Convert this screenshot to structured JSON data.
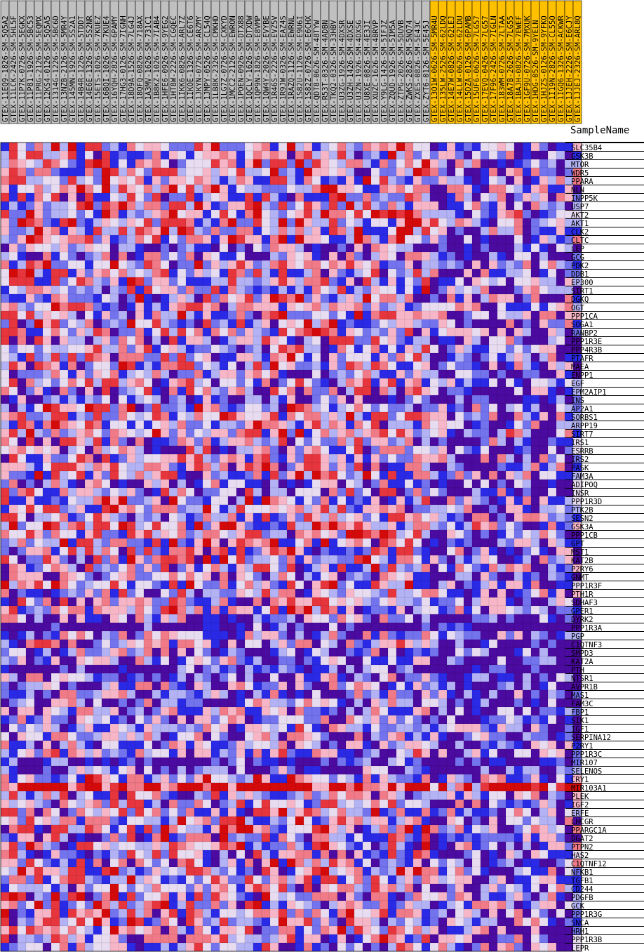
{
  "chart_data": {
    "type": "heatmap",
    "header_label": "SampleName",
    "colors": {
      "sample_header_group_a": "#c0c0c0",
      "sample_header_group_b": "#ffc000",
      "scale": [
        "#4b0aa0",
        "#2a2ae6",
        "#7373ee",
        "#b2b2f4",
        "#e8dcf0",
        "#f7b6c8",
        "#f07a88",
        "#e6353d",
        "#d40a0a"
      ],
      "grid": "#000000"
    },
    "value_range": [
      -1,
      1
    ],
    "columns": [
      {
        "name": "GTEX-11EQ9-1826-SM-5Q5A2",
        "group": "a"
      },
      {
        "name": "GTEX-11LCK-2426-SM-5HL5F",
        "group": "a"
      },
      {
        "name": "GTEX-11P7K-0726-SM-5EGKX",
        "group": "a"
      },
      {
        "name": "GTEX-11P81-1926-SM-5BC53",
        "group": "a"
      },
      {
        "name": "GTEX-11PRG-2126-SM-5EQMX",
        "group": "a"
      },
      {
        "name": "GTEX-12KS4-0126-SM-5Q5A5",
        "group": "a"
      },
      {
        "name": "GTEX-1314G-1226-SM-5BC6D",
        "group": "a"
      },
      {
        "name": "GTEX-13NZB-2126-SM-5MR4Y",
        "group": "a"
      },
      {
        "name": "GTEX-145MN-1926-SM-5S2A1",
        "group": "a"
      },
      {
        "name": "GTEX-14B4R-1226-SM-5TDDT",
        "group": "a"
      },
      {
        "name": "GTEX-14E6E-1326-SM-5S2NR",
        "group": "a"
      },
      {
        "name": "GTEX-15ETS-1026-SM-7KUEZ",
        "group": "a"
      },
      {
        "name": "GTEX-16BQI-1026-SM-7KUE4",
        "group": "a"
      },
      {
        "name": "GTEX-16YQH-2826-SM-6PAMY",
        "group": "a"
      },
      {
        "name": "GTEX-17HG3-0126-SM-7IGNH",
        "group": "a"
      },
      {
        "name": "GTEX-18D9A-1526-SM-7LG4J",
        "group": "a"
      },
      {
        "name": "GTEX-18QFQ-0826-SM-718AX",
        "group": "a"
      },
      {
        "name": "GTEX-1A3MV-1626-SM-731C1",
        "group": "a"
      },
      {
        "name": "GTEX-1B8KZ-1026-SM-7IAB4",
        "group": "a"
      },
      {
        "name": "GTEX-1HFE6-0926-SM-9YEG2",
        "group": "a"
      },
      {
        "name": "GTEX-1HT8W-2226-SM-CGQEC",
        "group": "a"
      },
      {
        "name": "GTEX-1IKK6-0826-SM-ARL7Z",
        "group": "a"
      },
      {
        "name": "GTEX-1IKOE-1326-SM-CE6T6",
        "group": "a"
      },
      {
        "name": "GTEX-1JKYN-0726-SM-ARZMY",
        "group": "a"
      },
      {
        "name": "GTEX-1JMPY-0526-SM-CL54Q",
        "group": "a"
      },
      {
        "name": "GTEX-1LB8K-2326-SM-CMKHD",
        "group": "a"
      },
      {
        "name": "GTEX-1LG7Z-0726-SM-CXKYD",
        "group": "a"
      },
      {
        "name": "GTEX-1MCC2-2126-SM-EWRON",
        "group": "a"
      },
      {
        "name": "GTEX-1POEN-0926-SM-DTX88",
        "group": "a"
      },
      {
        "name": "GTEX-1QCLY-1626-SM-DTXDW",
        "group": "a"
      },
      {
        "name": "GTEX-1QP9N-1826-SM-E8VMP",
        "group": "a"
      },
      {
        "name": "GTEX-1QW4Y-2026-SM-EVYBE",
        "group": "a"
      },
      {
        "name": "GTEX-1R46S-2226-SM-EVZ5V",
        "group": "a"
      },
      {
        "name": "GTEX-1R9JW-0326-SM-EAZ4S",
        "group": "a"
      },
      {
        "name": "GTEX-1RAZQ-1126-SM-EWRNL",
        "group": "a"
      },
      {
        "name": "GTEX-1S82U-1126-SM-E9U6I",
        "group": "a"
      },
      {
        "name": "GTEX-1S82Z-0726-SM-E6CHX",
        "group": "a"
      },
      {
        "name": "GTEX-QDT8-0626-SM-48TYW",
        "group": "a"
      },
      {
        "name": "GTEX-R53T-0326-SM-4ADBN",
        "group": "a"
      },
      {
        "name": "GTEX-TKQ2-0326-SM-33HBV",
        "group": "a"
      },
      {
        "name": "GTEX-U3ZG-1926-SM-4DXSR",
        "group": "a"
      },
      {
        "name": "GTEX-U3ZH-1426-SM-4DXSE",
        "group": "a"
      },
      {
        "name": "GTEX-U3ZN-1926-SM-4DXSG",
        "group": "a"
      },
      {
        "name": "GTEX-U8XE-0826-SM-4E3JI",
        "group": "a"
      },
      {
        "name": "GTEX-XUZC-1626-SM-4BRVP",
        "group": "a"
      },
      {
        "name": "GTEX-Y9LG-1426-SM-5IFJZ",
        "group": "a"
      },
      {
        "name": "GTEX-ZQUD-1926-SM-5IM5A",
        "group": "a"
      },
      {
        "name": "GTEX-ZTPG-2026-SM-5DUVB",
        "group": "a"
      },
      {
        "name": "GTEX-ZWKS-2826-SM-5NQ74",
        "group": "a"
      },
      {
        "name": "GTEX-ZXES-0826-SM-5E43C",
        "group": "a"
      },
      {
        "name": "GTEX-ZYT6-0126-SM-5E45J",
        "group": "a"
      },
      {
        "name": "GTEX-13O1W-0626-SM-5MR4U",
        "group": "b"
      },
      {
        "name": "GTEX-135LW-2526-SM-62LDQ",
        "group": "b"
      },
      {
        "name": "GTEX-14E7W-0826-SM-62LEJ",
        "group": "b"
      },
      {
        "name": "GTEX-14LLW-0626-SM-62LDU",
        "group": "b"
      },
      {
        "name": "GTEX-15DZA-0126-SM-6PAMB",
        "group": "b"
      },
      {
        "name": "GTEX-15UF6-0626-SM-7LG57",
        "group": "b"
      },
      {
        "name": "GTEX-17EVQ-0426-SM-7LG57",
        "group": "b"
      },
      {
        "name": "GTEX-17F96-2426-SM-7IGLN",
        "group": "b"
      },
      {
        "name": "GTEX-183WM-0726-SM-7LTAA",
        "group": "b"
      },
      {
        "name": "GTEX-18A7B-2626-SM-7LG55",
        "group": "b"
      },
      {
        "name": "GTEX-1BAJH-0826-SM-7EWEF",
        "group": "b"
      },
      {
        "name": "GTEX-1GF9U-0726-SM-7MXUK",
        "group": "b"
      },
      {
        "name": "GTEX-1HDG-0526-SM-9YELN",
        "group": "b"
      },
      {
        "name": "GTEX-1HJZS-0126-SM-9YFKO",
        "group": "b"
      },
      {
        "name": "GTEX-1I19N-2826-SM-CL55O",
        "group": "b"
      },
      {
        "name": "GTEX-1IGQ6-1326-SM-ACKWR",
        "group": "b"
      },
      {
        "name": "GTEX-1JJEH-2226-SM-E6CJY",
        "group": "b"
      },
      {
        "name": "GTEX-1JJEJ-2326-SM-ARL8Q",
        "group": "b"
      }
    ],
    "rows": [
      "SLC35B4",
      "GSK3B",
      "MTOR",
      "WDR5",
      "PPARA",
      "NLN",
      "INPP5K",
      "USP7",
      "AKT2",
      "AKT1",
      "CLK2",
      "CLTC",
      "LEP",
      "GCG",
      "PDK2",
      "DDB1",
      "EP300",
      "SIRT1",
      "DGKQ",
      "OGT",
      "PPP1CA",
      "SOGA1",
      "RANBP2",
      "PPP1R3E",
      "PPP4R3B",
      "PTAFR",
      "MAEA",
      "ENPP1",
      "EGF",
      "EPM2AIP1",
      "INS",
      "AP2A1",
      "SORBS1",
      "ARPP19",
      "SIRT7",
      "IRS1",
      "ESRRB",
      "IRS2",
      "PASK",
      "FAM3A",
      "ADIPOQ",
      "INSR",
      "PPP1R3D",
      "PTK2B",
      "SESN2",
      "GSK3A",
      "PPP1CB",
      "GPT",
      "MST1",
      "KAT2B",
      "P2RY6",
      "GNMT",
      "PPP1R3F",
      "PTH1R",
      "SDHAF3",
      "GPER1",
      "DYRK2",
      "PPP1R3A",
      "PGP",
      "C1QTNF3",
      "SMPD3",
      "KAT2A",
      "PTH",
      "NTSR1",
      "AVPR1B",
      "MAS1",
      "FAM3C",
      "FBP1",
      "SIK1",
      "IGF1",
      "SERPINA12",
      "P2RY1",
      "PPP1R3C",
      "MIR107",
      "SELENOS",
      "CRY1",
      "MIR103A1",
      "PLEK",
      "IGF2",
      "ERFE",
      "LHCGR",
      "PPARGC1A",
      "DGAT2",
      "PTPN2",
      "HAS2",
      "C1QTNF12",
      "NFKB1",
      "TGFB1",
      "CD244",
      "PDGFB",
      "GCK",
      "PPP1R3G",
      "SNCA",
      "HRH1",
      "PPP1R3B",
      "LEPR"
    ],
    "row_bias": [
      0.1,
      0.0,
      0.0,
      0.0,
      0.0,
      0.1,
      0.0,
      0.1,
      0.2,
      0.1,
      0.1,
      0.0,
      -0.5,
      -0.3,
      0.0,
      0.0,
      0.0,
      0.0,
      0.0,
      0.0,
      0.0,
      0.0,
      0.0,
      -0.1,
      0.0,
      0.0,
      0.0,
      -0.3,
      -0.1,
      -0.1,
      -0.6,
      0.0,
      0.0,
      0.0,
      0.1,
      -0.1,
      -0.2,
      0.0,
      0.0,
      0.0,
      -0.4,
      -0.1,
      0.0,
      0.0,
      0.0,
      0.1,
      0.0,
      0.0,
      0.0,
      0.0,
      0.0,
      -0.3,
      0.0,
      -0.1,
      -0.1,
      0.0,
      -0.3,
      -0.8,
      -0.2,
      -0.2,
      -0.3,
      -0.3,
      -0.8,
      -0.4,
      -0.4,
      -0.3,
      -0.3,
      -0.3,
      -0.3,
      -0.2,
      -0.3,
      -0.3,
      -0.2,
      -0.9,
      -0.6,
      0.1,
      0.95,
      -0.1,
      -0.1,
      0.0,
      0.0,
      0.0,
      0.0,
      0.0,
      -0.1,
      0.0,
      0.0,
      0.0,
      0.0,
      0.0,
      0.0,
      0.0,
      0.0,
      0.0,
      0.0,
      -0.1
    ],
    "group_b_bias": -0.35
  }
}
